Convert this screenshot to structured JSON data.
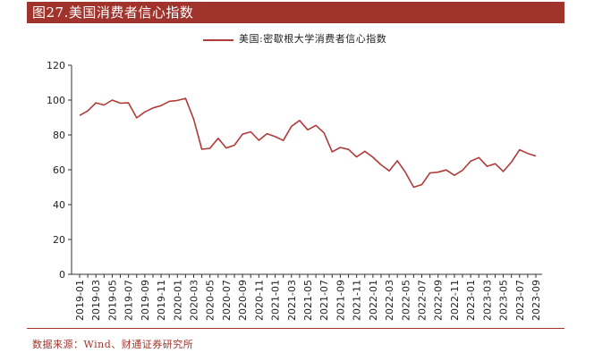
{
  "header": {
    "title": "图27.美国消费者信心指数"
  },
  "footer": {
    "source": "数据来源：Wind、财通证券研究所"
  },
  "chart_data": {
    "type": "line",
    "title": "",
    "xlabel": "",
    "ylabel": "",
    "ylim": [
      0,
      120
    ],
    "yticks": [
      0,
      20,
      40,
      60,
      80,
      100,
      120
    ],
    "grid": false,
    "legend_position": "top-center",
    "x_tick_labels": [
      "2019-01",
      "2019-03",
      "2019-05",
      "2019-07",
      "2019-09",
      "2019-11",
      "2020-01",
      "2020-03",
      "2020-05",
      "2020-07",
      "2020-09",
      "2020-11",
      "2021-01",
      "2021-03",
      "2021-05",
      "2021-07",
      "2021-09",
      "2021-11",
      "2022-01",
      "2022-03",
      "2022-05",
      "2022-07",
      "2022-09",
      "2022-11",
      "2023-01",
      "2023-03",
      "2023-05",
      "2023-07",
      "2023-09"
    ],
    "x": [
      "2019-01",
      "2019-02",
      "2019-03",
      "2019-04",
      "2019-05",
      "2019-06",
      "2019-07",
      "2019-08",
      "2019-09",
      "2019-10",
      "2019-11",
      "2019-12",
      "2020-01",
      "2020-02",
      "2020-03",
      "2020-04",
      "2020-05",
      "2020-06",
      "2020-07",
      "2020-08",
      "2020-09",
      "2020-10",
      "2020-11",
      "2020-12",
      "2021-01",
      "2021-02",
      "2021-03",
      "2021-04",
      "2021-05",
      "2021-06",
      "2021-07",
      "2021-08",
      "2021-09",
      "2021-10",
      "2021-11",
      "2021-12",
      "2022-01",
      "2022-02",
      "2022-03",
      "2022-04",
      "2022-05",
      "2022-06",
      "2022-07",
      "2022-08",
      "2022-09",
      "2022-10",
      "2022-11",
      "2022-12",
      "2023-01",
      "2023-02",
      "2023-03",
      "2023-04",
      "2023-05",
      "2023-06",
      "2023-07",
      "2023-08",
      "2023-09"
    ],
    "series": [
      {
        "name": "美国:密歇根大学消费者信心指数",
        "color": "#b03a38",
        "values": [
          91.2,
          93.8,
          98.4,
          97.2,
          100.0,
          98.2,
          98.4,
          89.8,
          93.2,
          95.5,
          96.8,
          99.3,
          99.8,
          101.0,
          89.1,
          71.8,
          72.3,
          78.1,
          72.5,
          74.1,
          80.4,
          81.8,
          76.9,
          80.7,
          79.0,
          76.8,
          84.9,
          88.3,
          82.9,
          85.5,
          81.2,
          70.3,
          72.8,
          71.7,
          67.4,
          70.6,
          67.2,
          62.8,
          59.4,
          65.2,
          58.4,
          50.0,
          51.5,
          58.2,
          58.6,
          59.9,
          56.8,
          59.7,
          64.9,
          67.0,
          62.0,
          63.5,
          59.0,
          64.4,
          71.5,
          69.4,
          67.9
        ]
      }
    ]
  }
}
